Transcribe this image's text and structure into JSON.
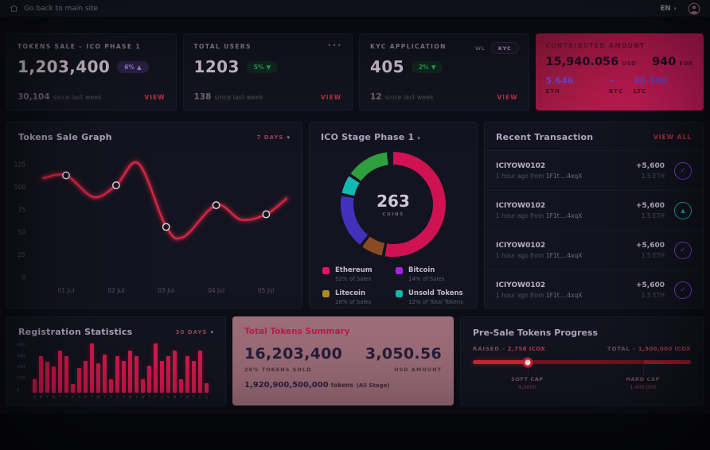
{
  "topbar": {
    "back_label": "Go back to main site",
    "language": "EN"
  },
  "stats": [
    {
      "title": "TOKENS SALE – ICO PHASE 1",
      "value": "1,203,400",
      "badge": "6%",
      "arrow": "▲",
      "delta": "30,104",
      "delta_note": "since last week",
      "action": "VIEW"
    },
    {
      "title": "TOTAL USERS",
      "value": "1203",
      "badge": "5%",
      "arrow": "▼",
      "delta": "138",
      "delta_note": "since last week",
      "action": "VIEW",
      "menu": "•••"
    },
    {
      "title": "KYC APPLICATION",
      "value": "405",
      "badge": "2%",
      "arrow": "▼",
      "delta": "12",
      "delta_note": "since last week",
      "action": "VIEW",
      "tags": [
        "WL",
        "KYC"
      ]
    }
  ],
  "contributed": {
    "title": "CONTRIBUTED AMOUNT",
    "primary_value": "15,940.056",
    "primary_unit": "USD",
    "secondary_value": "940",
    "secondary_unit": "EUR",
    "coins": [
      {
        "value": "5.646",
        "label": "ETH"
      },
      {
        "value": "~",
        "label": "BTC"
      },
      {
        "value": "40.506",
        "label": "LTC"
      }
    ]
  },
  "tokens_sale_graph": {
    "title": "Tokens Sale Graph",
    "range": "7 DAYS"
  },
  "ico_stage": {
    "title": "ICO Stage Phase 1",
    "center_value": "263",
    "center_label": "COINS",
    "legend": [
      {
        "name": "Ethereum",
        "detail": "52% of Sales",
        "color": "#e4126e"
      },
      {
        "name": "Bitcoin",
        "detail": "14% of Sales",
        "color": "#a422e0"
      },
      {
        "name": "Litecoin",
        "detail": "16% of Sales",
        "color": "#a28f1f"
      },
      {
        "name": "Unsold Tokens",
        "detail": "12% of Total Tokens",
        "color": "#10b8b0"
      }
    ]
  },
  "recent_transactions": {
    "title": "Recent Transaction",
    "view_all": "VIEW ALL",
    "rows": [
      {
        "id": "ICIYOW0102",
        "time": "1 hour ago from",
        "address": "1F1t....4xqX",
        "amount": "+5,600",
        "eth": "1.5 ETH",
        "status": "check"
      },
      {
        "id": "ICIYOW0102",
        "time": "1 hour ago from",
        "address": "1F1t....4xqX",
        "amount": "+5,600",
        "eth": "1.5 ETH",
        "status": "alert"
      },
      {
        "id": "ICIYOW0102",
        "time": "1 hour ago from",
        "address": "1F1t....4xqX",
        "amount": "+5,600",
        "eth": "1.5 ETH",
        "status": "check"
      },
      {
        "id": "ICIYOW0102",
        "time": "1 hour ago from",
        "address": "1F1t....4xqX",
        "amount": "+5,600",
        "eth": "1.5 ETH",
        "status": "check"
      }
    ]
  },
  "registration_stats": {
    "title": "Registration Statistics",
    "range": "30 DAYS"
  },
  "total_tokens": {
    "title": "Total Tokens Summary",
    "tokens_value": "16,203,400",
    "tokens_note": "26% TOKENS SOLD",
    "usd_value": "3,050.56",
    "usd_note": "USD AMOUNT",
    "all_stage_value": "1,920,900,500,000",
    "all_stage_unit": "tokens",
    "all_stage_extra": "(All Stage)"
  },
  "presale": {
    "title": "Pre-Sale Tokens Progress",
    "raised_label": "RAISED -",
    "raised_value": "2,758 ICOX",
    "total_label": "TOTAL -",
    "total_value": "1,500,000 ICOX",
    "soft_cap_label": "SOFT CAP",
    "soft_cap_value": "4,0000",
    "hard_cap_label": "HARD CAP",
    "hard_cap_value": "1,400,000",
    "progress_pct": 25,
    "hard_cap_pct": 78
  },
  "chart_data": [
    {
      "type": "line",
      "title": "Tokens Sale Graph",
      "x_ticks": [
        "01 Jul",
        "02 Jul",
        "03 Jul",
        "04 Jul",
        "05 Jul"
      ],
      "y_ticks": [
        0,
        25,
        50,
        75,
        100,
        125
      ],
      "ylim": [
        0,
        132
      ],
      "grid": false,
      "legend_position": "none",
      "series": [
        {
          "name": "Tokens Sale",
          "color": "#dc2645",
          "points": [
            [
              0.55,
              110
            ],
            [
              1,
              113
            ],
            [
              1.55,
              89
            ],
            [
              2,
              102
            ],
            [
              2.45,
              126
            ],
            [
              3,
              56
            ],
            [
              3.35,
              45
            ],
            [
              4,
              80
            ],
            [
              4.5,
              64
            ],
            [
              5,
              70
            ],
            [
              5.4,
              87
            ]
          ]
        }
      ],
      "markers": [
        [
          1,
          113
        ],
        [
          2,
          102
        ],
        [
          3,
          56
        ],
        [
          4,
          80
        ],
        [
          5,
          70
        ]
      ]
    },
    {
      "type": "pie",
      "title": "ICO Stage Phase 1",
      "center_value": "263",
      "center_label": "COINS",
      "slices": [
        {
          "label": "Ethereum",
          "value": 52,
          "color": "#e4126e"
        },
        {
          "label": "Bitcoin",
          "value": 14,
          "color": "#a422e0"
        },
        {
          "label": "Litecoin",
          "value": 16,
          "color": "#a28f1f"
        },
        {
          "label": "Unsold Tokens",
          "value": 12,
          "color": "#10b8b0"
        }
      ],
      "visual_segments": [
        {
          "color": "#cf1252",
          "pct": 52.5
        },
        {
          "color": "gap",
          "pct": 1
        },
        {
          "color": "#8a4a22",
          "pct": 6.5
        },
        {
          "color": "gap",
          "pct": 1
        },
        {
          "color": "#4131bb",
          "pct": 16.5
        },
        {
          "color": "gap",
          "pct": 1
        },
        {
          "color": "#14b8b2",
          "pct": 5.5
        },
        {
          "color": "gap",
          "pct": 1
        },
        {
          "color": "#2f9e3f",
          "pct": 13
        },
        {
          "color": "gap",
          "pct": 2
        }
      ]
    },
    {
      "type": "bar",
      "title": "Registration Statistics",
      "categories": [
        "S",
        "M",
        "T",
        "W",
        "T",
        "F",
        "S",
        "S",
        "M",
        "T",
        "W",
        "T",
        "F",
        "S",
        "S",
        "M",
        "T",
        "W",
        "T",
        "F",
        "S",
        "S",
        "M",
        "T",
        "W",
        "T",
        "F",
        "S"
      ],
      "values": [
        110,
        300,
        250,
        210,
        340,
        300,
        70,
        200,
        260,
        400,
        240,
        310,
        110,
        300,
        260,
        340,
        300,
        110,
        220,
        400,
        260,
        300,
        340,
        110,
        300,
        260,
        340,
        80
      ],
      "y_ticks": [
        0,
        100,
        200,
        300,
        400
      ],
      "ylim": [
        0,
        400
      ],
      "color": "#d6194d"
    }
  ]
}
